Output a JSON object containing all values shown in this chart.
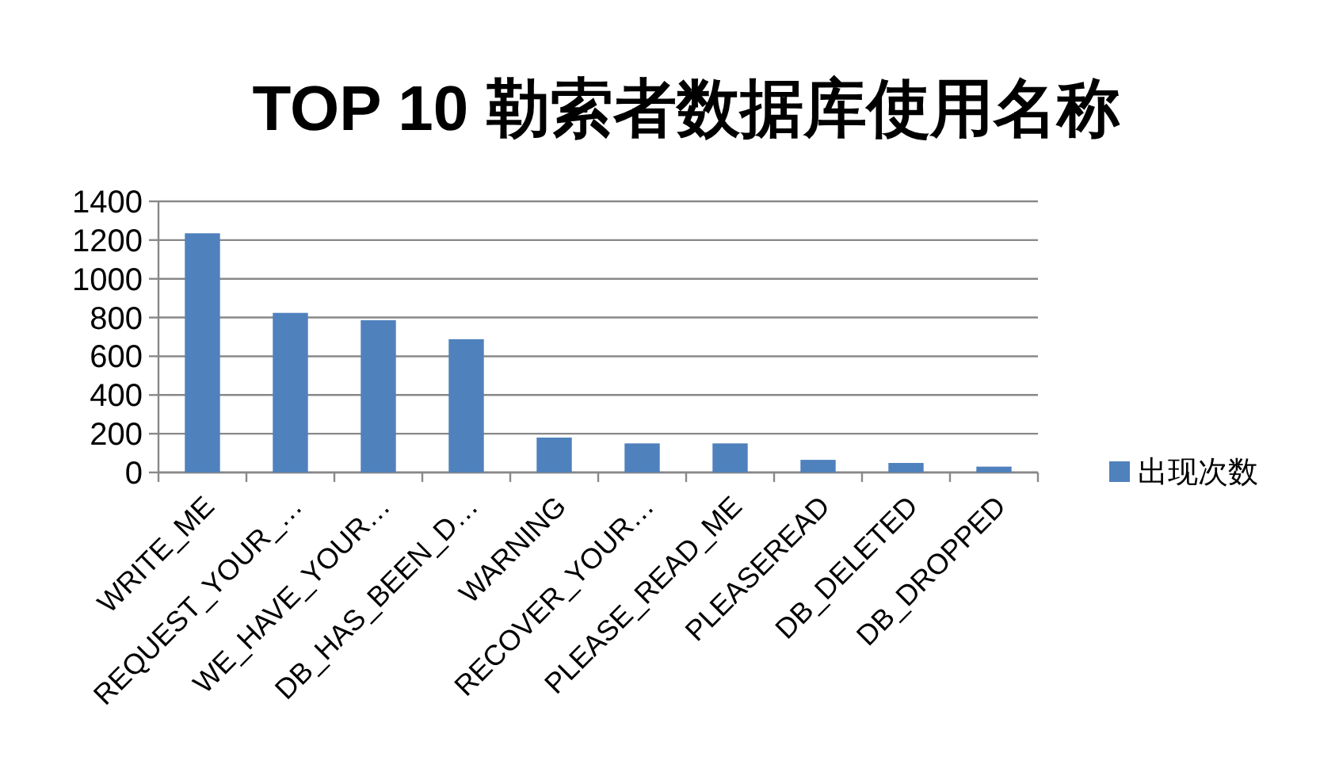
{
  "chart_data": {
    "type": "bar",
    "title": "TOP 10 勒索者数据库使用名称",
    "categories": [
      "WRITE_ME",
      "REQUEST_YOUR_…",
      "WE_HAVE_YOUR…",
      "DB_HAS_BEEN_D…",
      "WARNING",
      "RECOVER_YOUR…",
      "PLEASE_READ_ME",
      "PLEASEREAD",
      "DB_DELETED",
      "DB_DROPPED"
    ],
    "series": [
      {
        "name": "出现次数",
        "color": "#4f81bd",
        "values": [
          1235,
          824,
          786,
          688,
          180,
          150,
          150,
          65,
          49,
          30
        ]
      }
    ],
    "ylim": [
      0,
      1400
    ],
    "yticks": [
      0,
      200,
      400,
      600,
      800,
      1000,
      1200,
      1400
    ],
    "grid": "y",
    "legend": "right"
  }
}
